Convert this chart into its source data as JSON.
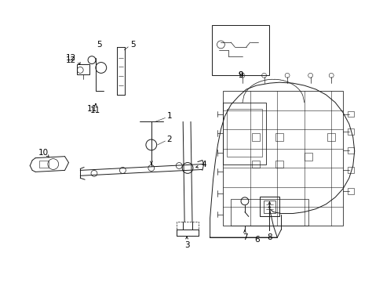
{
  "bg_color": "#ffffff",
  "line_color": "#1a1a1a",
  "fig_width": 4.89,
  "fig_height": 3.6,
  "dpi": 100,
  "label_fs": 7.5,
  "lw": 0.7
}
